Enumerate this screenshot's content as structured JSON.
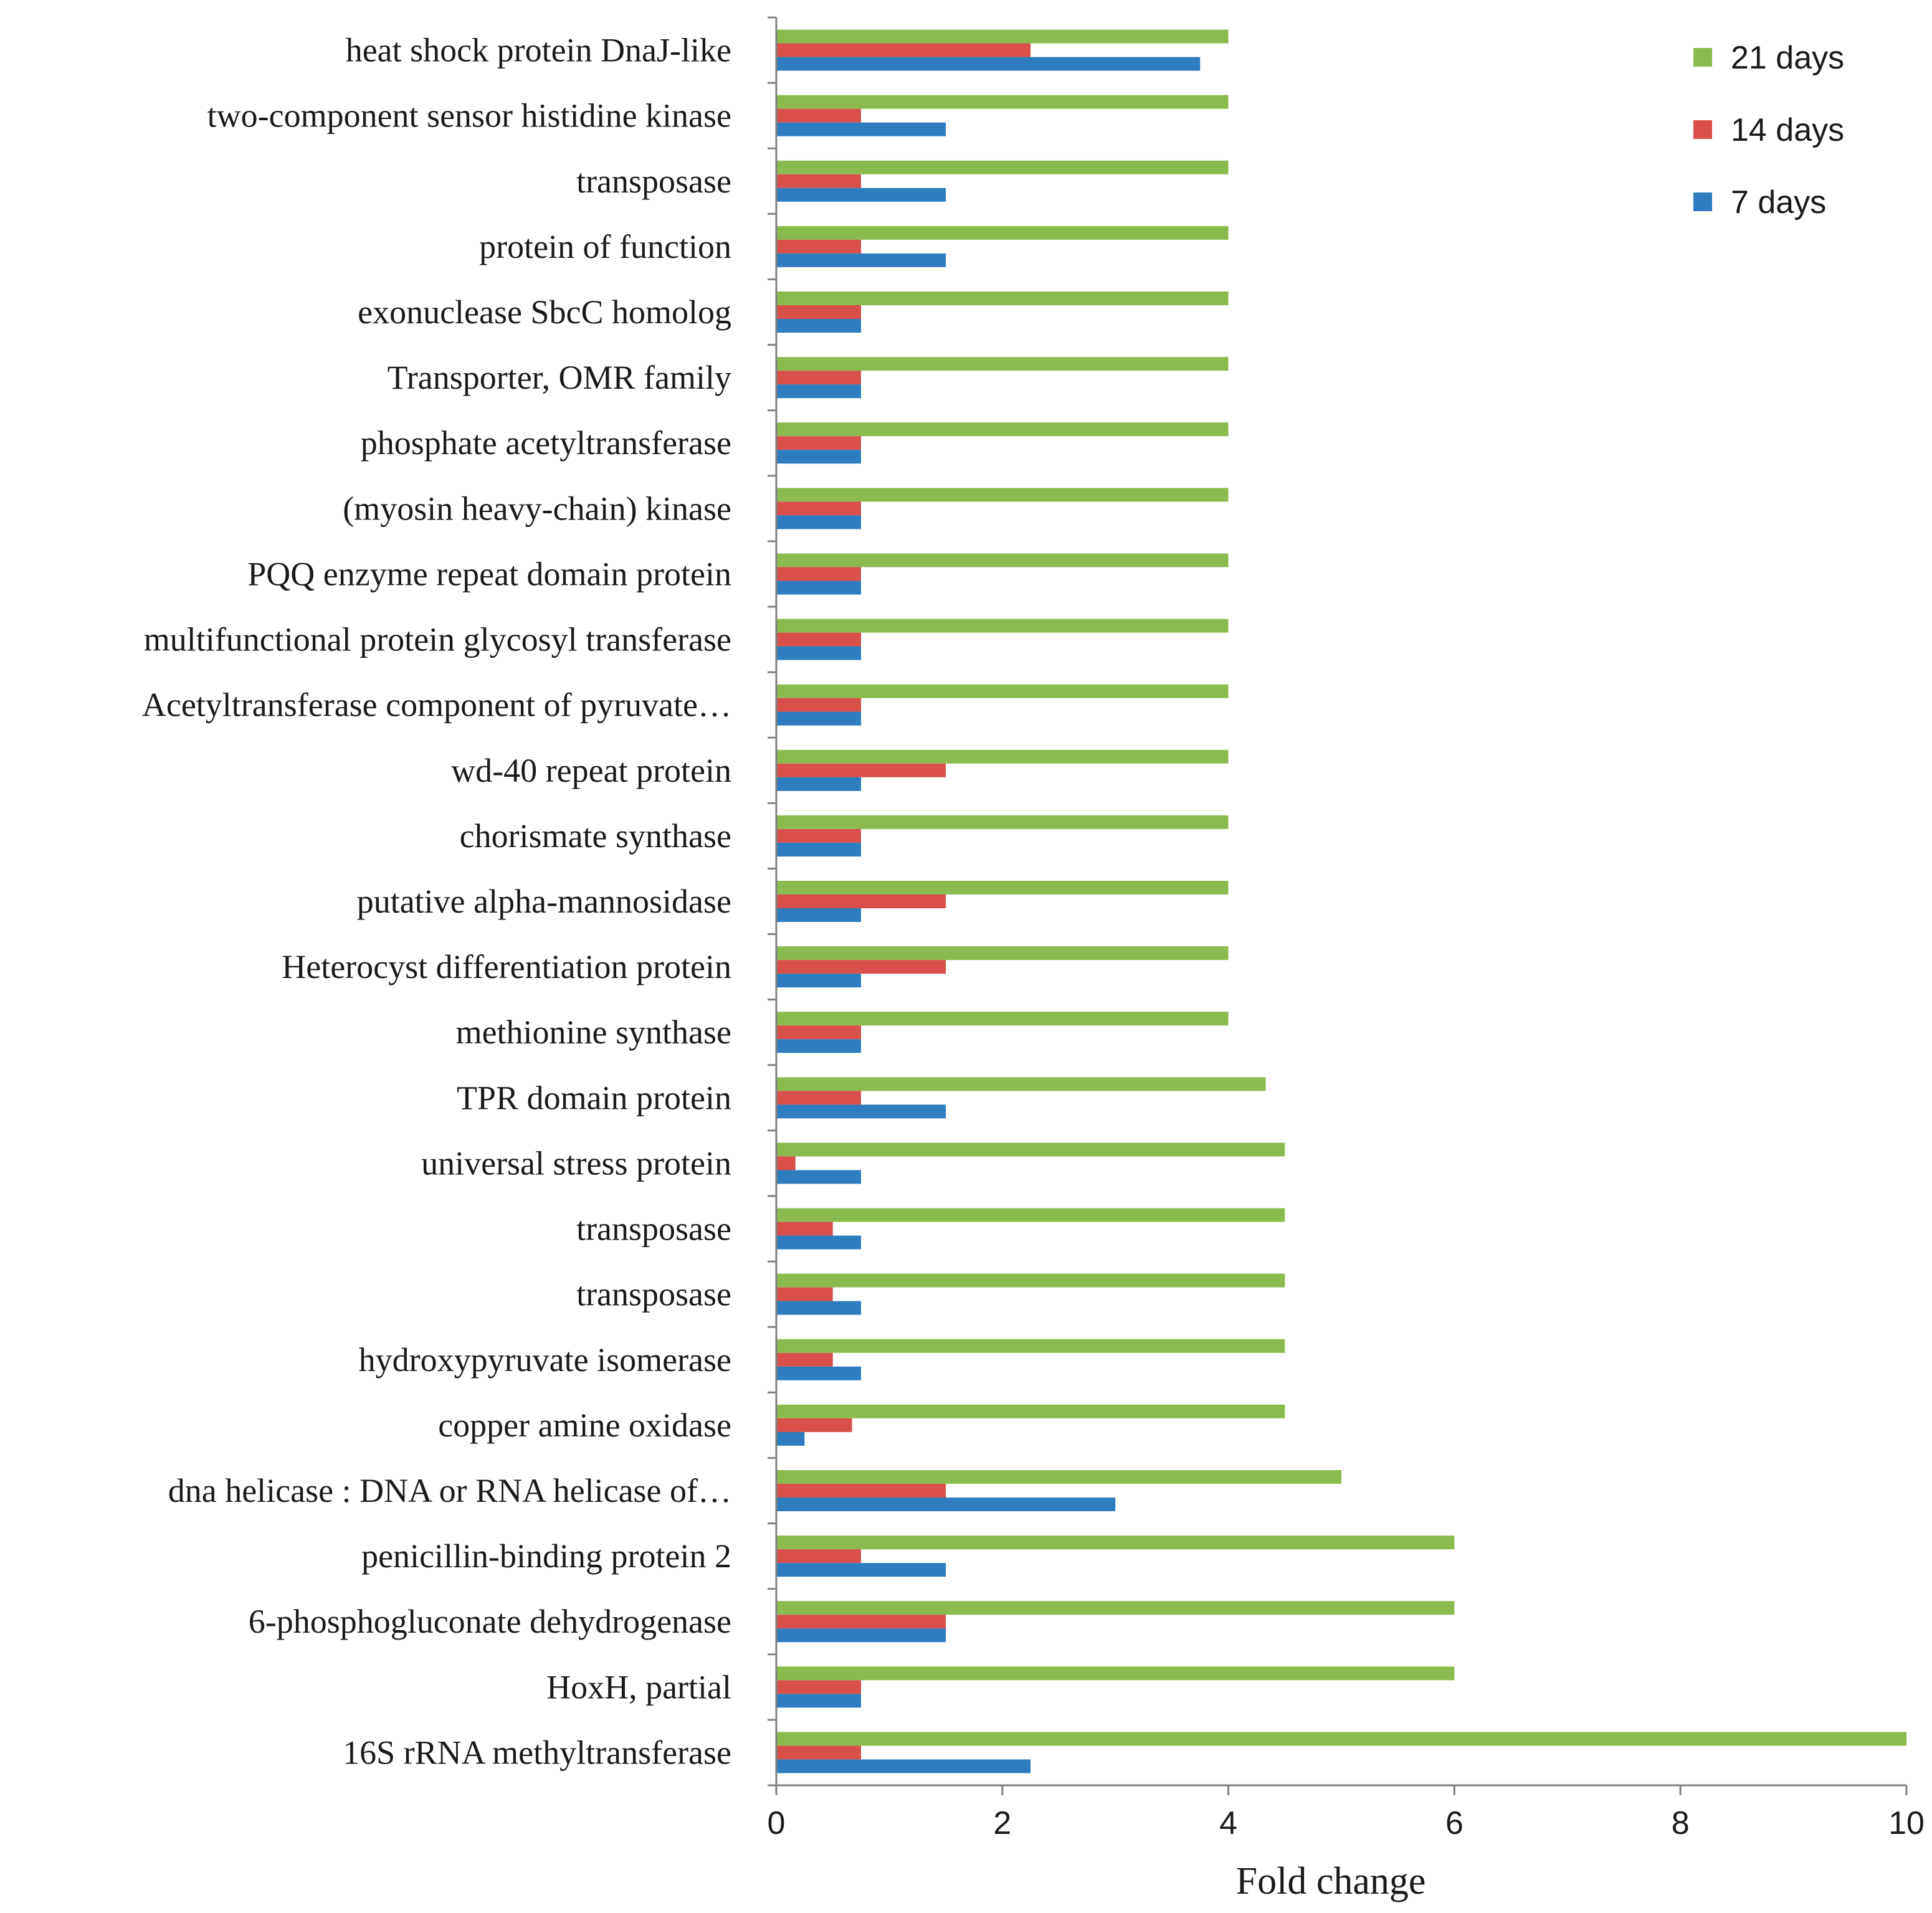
{
  "chart_data": {
    "type": "bar",
    "orientation": "horizontal",
    "title": "",
    "xlabel": "Fold change",
    "ylabel": "",
    "xlim": [
      0,
      10
    ],
    "xticks": [
      0,
      2,
      4,
      6,
      8,
      10
    ],
    "grid": false,
    "legend_position": "top-right",
    "categories": [
      "16S rRNA methyltransferase",
      "HoxH, partial",
      "6-phosphogluconate dehydrogenase",
      "penicillin-binding protein 2",
      "dna helicase : DNA or RNA helicase of…",
      "copper amine oxidase",
      "hydroxypyruvate isomerase",
      "transposase",
      "transposase",
      "universal stress protein",
      "TPR domain protein",
      "methionine synthase",
      "Heterocyst differentiation protein",
      "putative alpha-mannosidase",
      "chorismate synthase",
      "wd-40 repeat protein",
      "Acetyltransferase component of pyruvate…",
      "multifunctional protein glycosyl transferase",
      "PQQ enzyme repeat domain protein",
      "(myosin heavy-chain) kinase",
      "phosphate acetyltransferase",
      "Transporter, OMR family",
      "exonuclease SbcC homolog",
      "protein of  function",
      "transposase",
      "two-component sensor histidine kinase",
      "heat shock protein DnaJ-like"
    ],
    "series": [
      {
        "name": "7 days",
        "color": "#2E7DC0",
        "values": [
          2.25,
          0.75,
          1.5,
          1.5,
          3.0,
          0.25,
          0.75,
          0.75,
          0.75,
          0.75,
          1.5,
          0.75,
          0.75,
          0.75,
          0.75,
          0.75,
          0.75,
          0.75,
          0.75,
          0.75,
          0.75,
          0.75,
          0.75,
          1.5,
          1.5,
          1.5,
          3.75
        ]
      },
      {
        "name": "14 days",
        "color": "#D9504B",
        "values": [
          0.75,
          0.75,
          1.5,
          0.75,
          1.5,
          0.67,
          0.5,
          0.5,
          0.5,
          0.17,
          0.75,
          0.75,
          1.5,
          1.5,
          0.75,
          1.5,
          0.75,
          0.75,
          0.75,
          0.75,
          0.75,
          0.75,
          0.75,
          0.75,
          0.75,
          0.75,
          2.25
        ]
      },
      {
        "name": "21 days",
        "color": "#8BBB4F",
        "values": [
          10.0,
          6.0,
          6.0,
          6.0,
          5.0,
          4.5,
          4.5,
          4.5,
          4.5,
          4.5,
          4.33,
          4.0,
          4.0,
          4.0,
          4.0,
          4.0,
          4.0,
          4.0,
          4.0,
          4.0,
          4.0,
          4.0,
          4.0,
          4.0,
          4.0,
          4.0,
          4.0
        ]
      }
    ],
    "legend_order": [
      "21 days",
      "14 days",
      "7 days"
    ]
  }
}
